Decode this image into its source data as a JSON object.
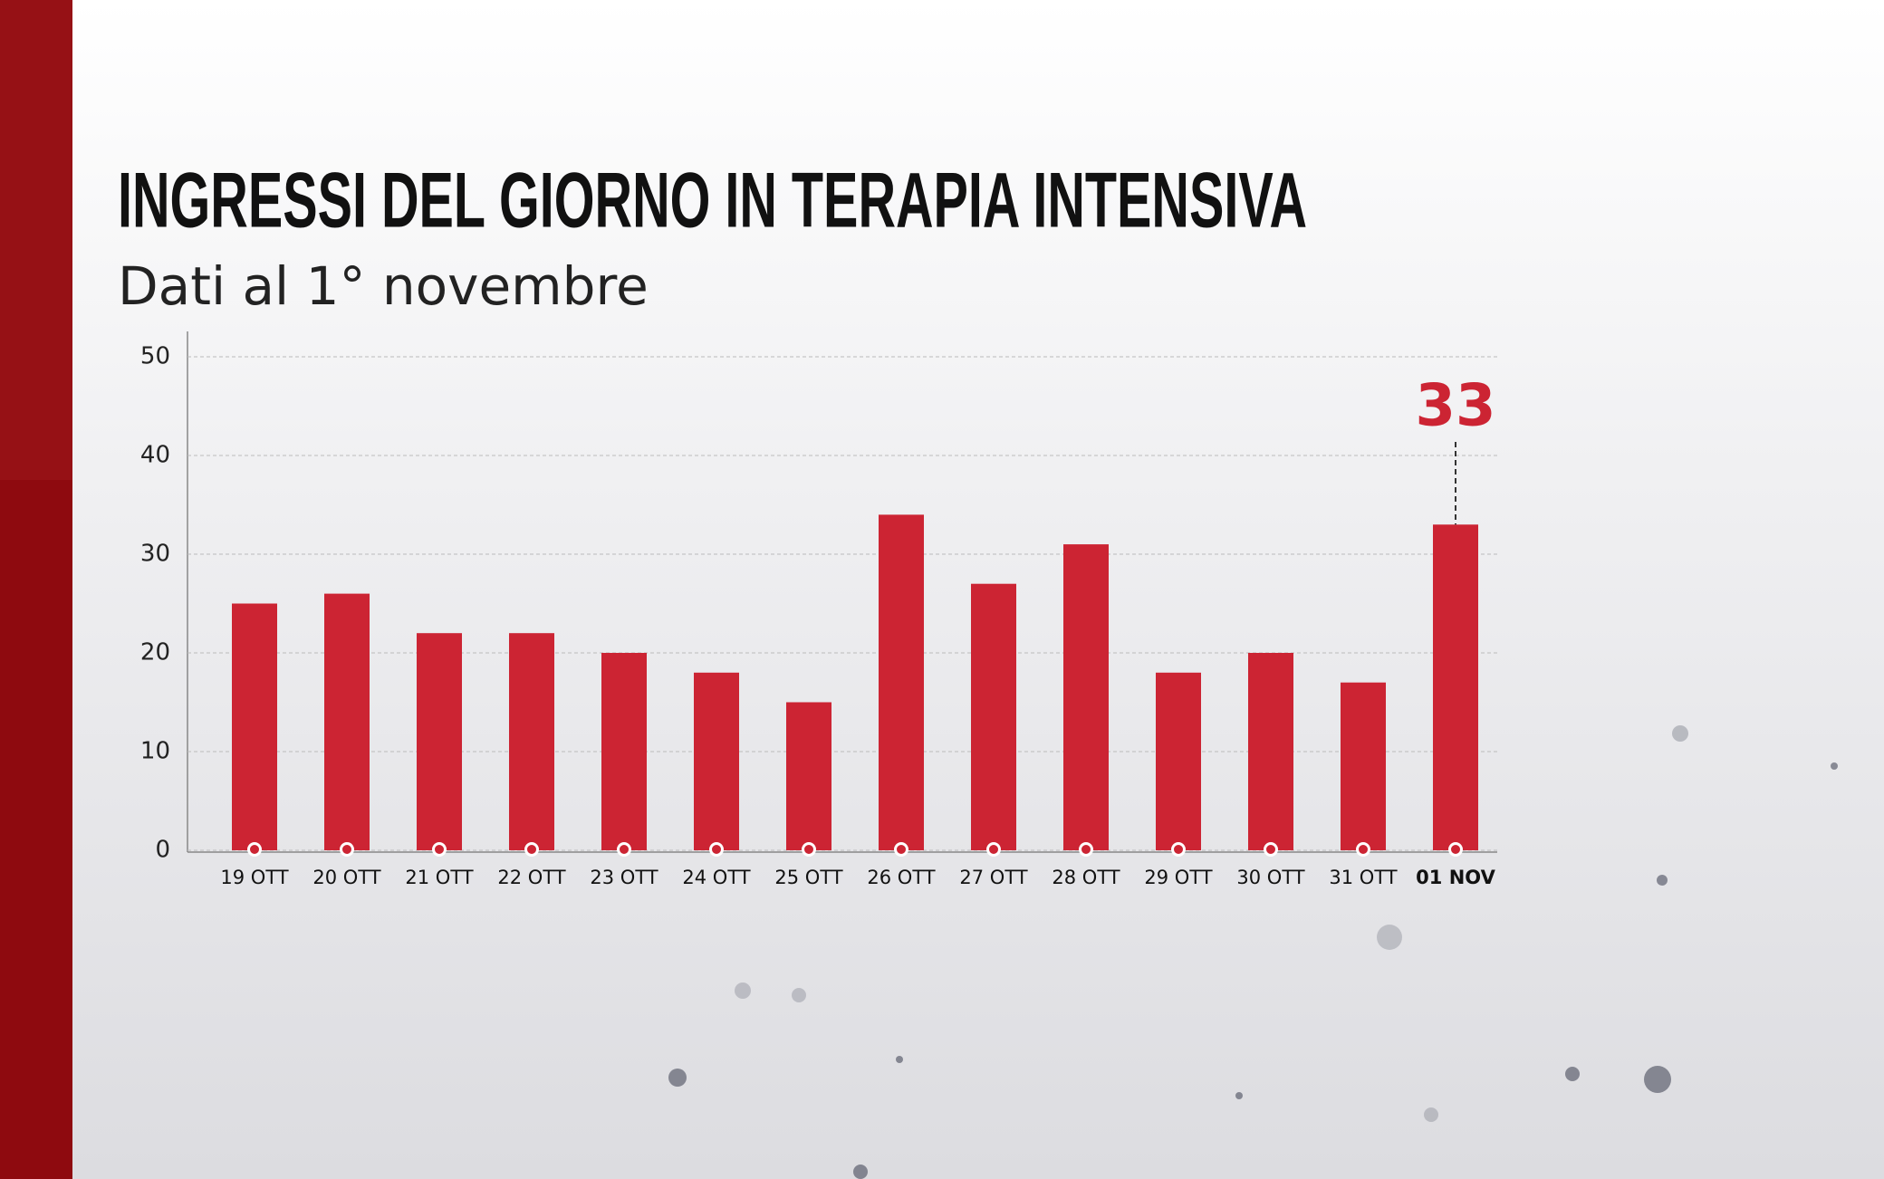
{
  "chart_data": {
    "type": "bar",
    "title": "INGRESSI DEL GIORNO IN TERAPIA INTENSIVA",
    "subtitle": "Dati al 1° novembre",
    "categories": [
      "19 OTT",
      "20 OTT",
      "21 OTT",
      "22 OTT",
      "23 OTT",
      "24 OTT",
      "25 OTT",
      "26 OTT",
      "27 OTT",
      "28 OTT",
      "29 OTT",
      "30 OTT",
      "31 OTT",
      "01 NOV"
    ],
    "series": [
      {
        "color": "#cc2433",
        "values": [
          25,
          26,
          22,
          22,
          20,
          18,
          15,
          34,
          27,
          31,
          18,
          20,
          17,
          33
        ],
        "value_labels": [
          null,
          null,
          null,
          null,
          null,
          null,
          null,
          null,
          null,
          null,
          null,
          null,
          null,
          "33"
        ]
      }
    ],
    "ylim": [
      0,
      50
    ],
    "yticks": [
      0,
      10,
      20,
      30,
      40,
      50
    ],
    "grid": true
  }
}
